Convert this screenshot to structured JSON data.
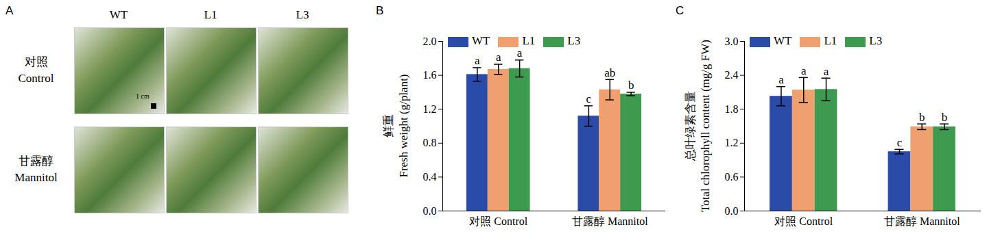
{
  "chart_data": [
    {
      "type": "image",
      "panel": "A",
      "columns": [
        "WT",
        "L1",
        "L3"
      ],
      "rows": [
        [
          "对照",
          "Control"
        ],
        [
          "甘露醇",
          "Mannitol"
        ]
      ],
      "scale_bar": "1 cm"
    },
    {
      "type": "bar",
      "panel": "B",
      "categories": [
        "对照 Control",
        "甘露醇 Mannitol"
      ],
      "ylabel": [
        "鲜重",
        "Fresh weight (g/plant)"
      ],
      "ylim": [
        0,
        2.0
      ],
      "yticks": [
        {
          "value": 0,
          "label": "0.0"
        },
        0.4,
        0.8,
        1.2,
        1.6,
        {
          "value": 2.0,
          "label": "2.0"
        }
      ],
      "legend": "top-left",
      "series": [
        {
          "name": "WT",
          "color": "#2B4BA8",
          "values": [
            1.61,
            1.12
          ],
          "errors": [
            0.08,
            0.12
          ],
          "letters": [
            "a",
            "c"
          ]
        },
        {
          "name": "L1",
          "color": "#F0A070",
          "values": [
            1.67,
            1.43
          ],
          "errors": [
            0.06,
            0.12
          ],
          "letters": [
            "a",
            "ab"
          ]
        },
        {
          "name": "L3",
          "color": "#3E9A4E",
          "values": [
            1.68,
            1.38
          ],
          "errors": [
            0.1,
            0.02
          ],
          "letters": [
            "a",
            "b"
          ]
        }
      ]
    },
    {
      "type": "bar",
      "panel": "C",
      "categories": [
        "对照 Control",
        "甘露醇 Mannitol"
      ],
      "ylabel": [
        "总叶绿素含量",
        "Total chlorophyll content (mg/g FW)"
      ],
      "ylim": [
        0,
        3.0
      ],
      "yticks": [
        {
          "value": 0,
          "label": "0.0"
        },
        0.6,
        1.2,
        1.8,
        2.4,
        {
          "value": 3.0,
          "label": "3.0"
        }
      ],
      "legend": "top-left",
      "series": [
        {
          "name": "WT",
          "color": "#2B4BA8",
          "values": [
            2.03,
            1.05
          ],
          "errors": [
            0.17,
            0.04
          ],
          "letters": [
            "a",
            "c"
          ]
        },
        {
          "name": "L1",
          "color": "#F0A070",
          "values": [
            2.14,
            1.49
          ],
          "errors": [
            0.22,
            0.05
          ],
          "letters": [
            "a",
            "b"
          ]
        },
        {
          "name": "L3",
          "color": "#3E9A4E",
          "values": [
            2.15,
            1.49
          ],
          "errors": [
            0.2,
            0.05
          ],
          "letters": [
            "a",
            "b"
          ]
        }
      ]
    }
  ]
}
